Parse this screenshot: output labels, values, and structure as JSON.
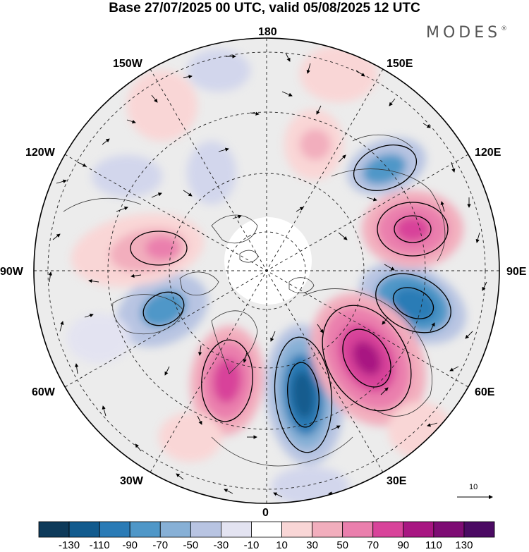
{
  "header": {
    "title": "Base 27/07/2025 00 UTC, valid 05/08/2025 12 UTC",
    "brand": "MODES",
    "brand_mark": "®"
  },
  "map": {
    "projection": "polar-stereographic-north",
    "field": "height anomaly with wind vectors",
    "longitude_labels": {
      "top": "180",
      "bottom": "0",
      "left": "90W",
      "right": "90E",
      "upper_left_1": "150W",
      "upper_left_2": "120W",
      "upper_right_1": "150E",
      "upper_right_2": "120E",
      "lower_left_1": "60W",
      "lower_left_2": "30W",
      "lower_right_1": "60E",
      "lower_right_2": "30E"
    },
    "vector_reference": {
      "label": "10"
    }
  },
  "colorbar": {
    "labels": [
      "-130",
      "-110",
      "-90",
      "-70",
      "-50",
      "-30",
      "-10",
      "10",
      "30",
      "50",
      "70",
      "90",
      "110",
      "130"
    ],
    "colors": [
      "#0d3a5a",
      "#125b8e",
      "#2a7bb6",
      "#4f97c8",
      "#87b0d6",
      "#b8c4e2",
      "#e3e3f1",
      "#ffffff",
      "#f9d6d6",
      "#f2aebd",
      "#ea7fad",
      "#d8439a",
      "#a81682",
      "#7e0c74",
      "#4b0a63"
    ]
  }
}
